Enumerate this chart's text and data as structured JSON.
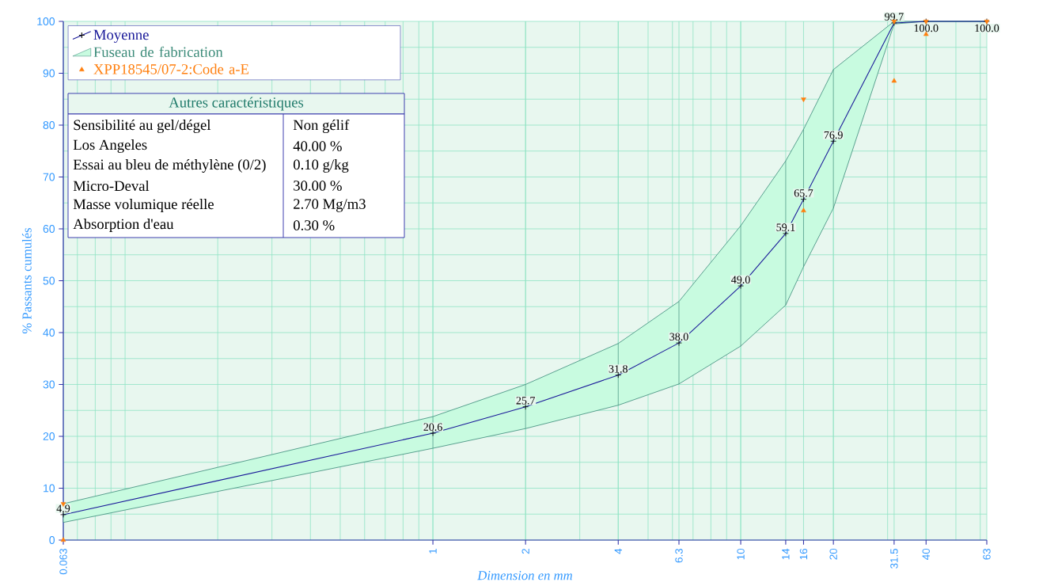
{
  "chart_data": [
    {
      "type": "line",
      "xlabel": "Dimension en mm",
      "ylabel": "% Passants cumulés",
      "x": [
        0.063,
        1,
        2,
        4,
        6.3,
        10,
        14,
        16,
        20,
        31.5,
        40,
        63
      ],
      "xlim": [
        0.063,
        63
      ],
      "ylim": [
        0,
        100
      ],
      "xticks": [
        0.063,
        1,
        2,
        4,
        6.3,
        10,
        14,
        16,
        20,
        31.5,
        40,
        63
      ],
      "yticks": [
        0,
        10,
        20,
        30,
        40,
        50,
        60,
        70,
        80,
        90,
        100
      ],
      "log": "x",
      "grid": true,
      "legend": "top left",
      "series": [
        {
          "name": "Moyenne",
          "color": "#1a1a99",
          "marker": "cross",
          "values": [
            4.9,
            20.6,
            25.7,
            31.8,
            38.0,
            49.0,
            59.1,
            65.7,
            76.9,
            99.7,
            100.0,
            100.0
          ],
          "value_labels": [
            "4.9",
            "20.6",
            "25.7",
            "31.8",
            "38.0",
            "49.0",
            "59.1",
            "65.7",
            "76.9",
            "99.7",
            "100.0",
            "100.0"
          ]
        },
        {
          "name": "Fuseau de fabrication",
          "type": "area",
          "color": "#c8fbe0",
          "values": [
            7.0,
            23.8,
            30.0,
            37.9,
            46.0,
            60.6,
            73.1,
            79.2,
            90.7,
            100,
            100,
            100
          ],
          "errors": [
            [
              3.4,
              7.0
            ],
            [
              17.7,
              23.8
            ],
            [
              21.5,
              30.0
            ],
            [
              26.0,
              37.9
            ],
            [
              30.1,
              46.0
            ],
            [
              37.4,
              60.6
            ],
            [
              45.3,
              73.1
            ],
            [
              52.7,
              79.2
            ],
            [
              64.0,
              90.7
            ],
            [
              99.5,
              100
            ],
            [
              100,
              100
            ],
            [
              100,
              100
            ]
          ]
        },
        {
          "name": "XPP18545/07-2:Code a-E",
          "type": "scatter",
          "color": "#ff7f0e",
          "marker": "triangle",
          "x": [
            0.063,
            16,
            31.5,
            40
          ],
          "values": [
            0,
            63.5,
            88.5,
            97.5
          ]
        },
        {
          "type": "scatter",
          "color": "#ff7f0e",
          "marker": "triangle-down",
          "x": [
            0.063,
            16,
            31.5,
            40,
            63
          ],
          "values": [
            7,
            85,
            100,
            100,
            100
          ]
        }
      ]
    },
    {
      "type": "other",
      "title": "Autres caractéristiques",
      "annotations": [
        "Sensibilité au gel/dégel",
        "Non gélif",
        "Los Angeles",
        "40.00 %",
        "Essai au bleu de méthylène (0/2)",
        "0.10 g/kg",
        "Micro-Deval",
        "30.00 %",
        "Masse volumique réelle",
        "2.70 Mg/m3",
        "Absorption d'eau",
        "0.30 %"
      ]
    }
  ]
}
